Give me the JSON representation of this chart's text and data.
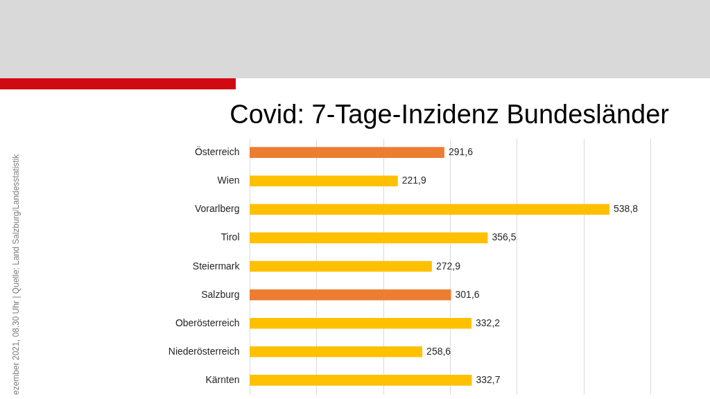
{
  "chart_data": {
    "type": "bar",
    "orientation": "horizontal",
    "title": "Covid: 7-Tage-Inzidenz Bundesländer",
    "categories": [
      "Österreich",
      "Wien",
      "Vorarlberg",
      "Tirol",
      "Steiermark",
      "Salzburg",
      "Oberösterreich",
      "Niederösterreich",
      "Kärnten"
    ],
    "values": [
      291.6,
      221.9,
      538.8,
      356.5,
      272.9,
      301.6,
      332.2,
      258.6,
      332.7
    ],
    "value_labels": [
      "291,6",
      "221,9",
      "538,8",
      "356,5",
      "272,9",
      "301,6",
      "332,2",
      "258,6",
      "332,7"
    ],
    "colors": [
      "#ed7d31",
      "#ffc000",
      "#ffc000",
      "#ffc000",
      "#ffc000",
      "#ed7d31",
      "#ffc000",
      "#ffc000",
      "#ffc000"
    ],
    "xlim": [
      0,
      600
    ],
    "xticks": [
      0,
      100,
      200,
      300,
      400,
      500,
      600
    ],
    "grid": "x",
    "tick_labels": "y",
    "annotations": [
      "ezember 2021, 08.30 Uhr | Quelle: Land Salzburg/Landesstatistik"
    ]
  }
}
